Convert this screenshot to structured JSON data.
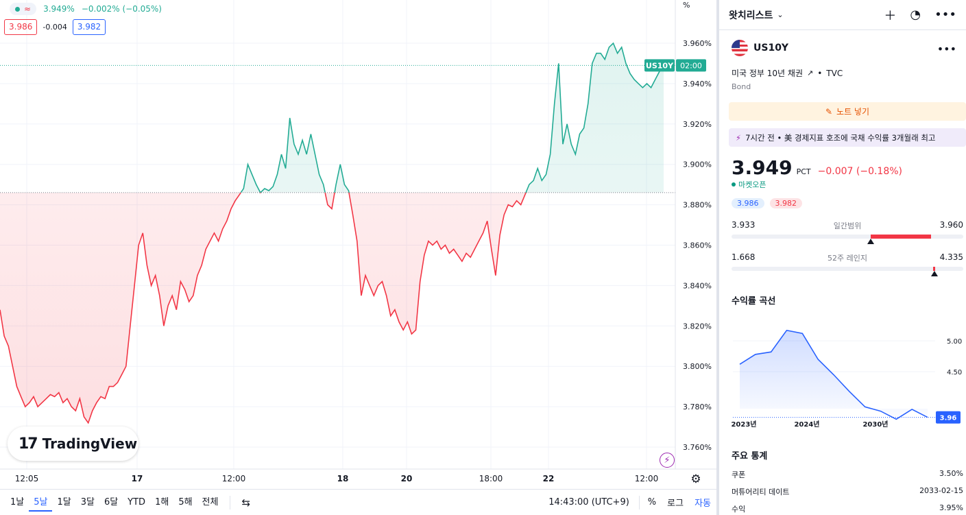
{
  "legend": {
    "approx_symbol": "≈",
    "last_value": "3.949%",
    "change": "−0.002% (−0.05%)",
    "bid": "3.986",
    "spread": "-0.004",
    "ask": "3.982"
  },
  "chart_data": {
    "type": "area",
    "baseline": 3.886,
    "price_axis_unit": "%",
    "ylim": [
      3.75,
      3.97
    ],
    "y_ticks": [
      3.96,
      3.94,
      3.92,
      3.9,
      3.88,
      3.86,
      3.84,
      3.82,
      3.8,
      3.78,
      3.76
    ],
    "y_tick_labels": [
      "3.960%",
      "3.940%",
      "3.920%",
      "3.900%",
      "3.880%",
      "3.860%",
      "3.840%",
      "3.820%",
      "3.800%",
      "3.780%",
      "3.760%"
    ],
    "x_tick_labels": [
      "12:05",
      "17",
      "12:00",
      "18",
      "20",
      "18:00",
      "22",
      "12:00"
    ],
    "last_label": "US10Y",
    "last_time_label": "02:00",
    "colors": {
      "up": "#22ab94",
      "down": "#f23645"
    },
    "series": [
      {
        "values": [
          3.828,
          3.815,
          3.81,
          3.8,
          3.79,
          3.785,
          3.78,
          3.782,
          3.785,
          3.78,
          3.782,
          3.784,
          3.786,
          3.785,
          3.787,
          3.782,
          3.784,
          3.78,
          3.778,
          3.784,
          3.775,
          3.772,
          3.778,
          3.782,
          3.785,
          3.784,
          3.79,
          3.79,
          3.792,
          3.796,
          3.8,
          3.82,
          3.84,
          3.86,
          3.866,
          3.85,
          3.84,
          3.845,
          3.835,
          3.82,
          3.83,
          3.835,
          3.828,
          3.842,
          3.838,
          3.832,
          3.835,
          3.845,
          3.85,
          3.858,
          3.862,
          3.866,
          3.862,
          3.868,
          3.872,
          3.878,
          3.882,
          3.885,
          3.888,
          3.9,
          3.895,
          3.89,
          3.886,
          3.888,
          3.887,
          3.889,
          3.895,
          3.905,
          3.898,
          3.923,
          3.91,
          3.905,
          3.912,
          3.905,
          3.915,
          3.905,
          3.895,
          3.89,
          3.88,
          3.878,
          3.89,
          3.9,
          3.89,
          3.887,
          3.875,
          3.862,
          3.835,
          3.845,
          3.84,
          3.835,
          3.84,
          3.842,
          3.835,
          3.825,
          3.828,
          3.822,
          3.818,
          3.822,
          3.816,
          3.818,
          3.842,
          3.855,
          3.862,
          3.86,
          3.862,
          3.858,
          3.86,
          3.856,
          3.858,
          3.855,
          3.852,
          3.856,
          3.854,
          3.858,
          3.862,
          3.866,
          3.872,
          3.858,
          3.845,
          3.865,
          3.875,
          3.88,
          3.879,
          3.882,
          3.88,
          3.885,
          3.89,
          3.892,
          3.898,
          3.892,
          3.895,
          3.905,
          3.93,
          3.95,
          3.91,
          3.92,
          3.91,
          3.905,
          3.915,
          3.918,
          3.93,
          3.95,
          3.955,
          3.955,
          3.952,
          3.958,
          3.96,
          3.955,
          3.958,
          3.95,
          3.945,
          3.942,
          3.94,
          3.938,
          3.94,
          3.938,
          3.942,
          3.946,
          3.949
        ]
      }
    ]
  },
  "bottom_bar": {
    "ranges": [
      "1날",
      "5날",
      "1달",
      "3달",
      "6달",
      "YTD",
      "1해",
      "5해",
      "전체"
    ],
    "active_range": "5날",
    "time": "14:43:00 (UTC+9)",
    "percent": "%",
    "log": "로그",
    "auto": "자동"
  },
  "watermark": {
    "brand": "TradingView"
  },
  "sidebar": {
    "title": "왓치리스트",
    "symbol": "US10Y",
    "description": "미국 정부 10년 채권",
    "source": "TVC",
    "type": "Bond",
    "note_label": "노트 넣기",
    "news": "7시간 전 • 美 경제지표 호조에 국채 수익률 3개월래 최고",
    "price": "3.949",
    "unit": "PCT",
    "change": "−0.007 (−0.18%)",
    "market_status": "마켓오픈",
    "bid": "3.986",
    "ask": "3.982",
    "day_range": {
      "low": "3.933",
      "high": "3.960",
      "label": "일간범위",
      "current_fraction": 0.6
    },
    "week52_range": {
      "low": "1.668",
      "high": "4.335",
      "label": "52주 레인지",
      "current_fraction": 0.855
    },
    "yield_curve": {
      "title": "수익률 곡선",
      "y_ticks": [
        "5.00",
        "4.50"
      ],
      "x_labels": [
        "2023년",
        "2024년",
        "2030년"
      ],
      "current_label": "3.96",
      "values": [
        4.62,
        4.78,
        4.82,
        5.17,
        5.12,
        4.7,
        4.45,
        4.18,
        3.93,
        3.86,
        3.73,
        3.89,
        3.76
      ]
    },
    "stats": {
      "title": "주요 통계",
      "rows": [
        {
          "key": "쿠폰",
          "value": "3.50%"
        },
        {
          "key": "머튜어리티 데이트",
          "value": "2033-02-15"
        },
        {
          "key": "수익",
          "value": "3.95%"
        }
      ]
    }
  }
}
